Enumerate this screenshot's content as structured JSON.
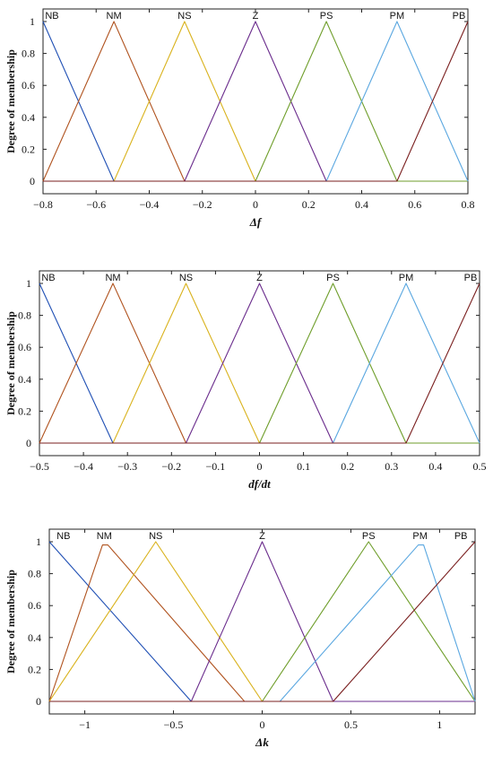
{
  "colors": {
    "NB": "#1f4fb4",
    "NM": "#b0531f",
    "NS": "#d9b21c",
    "Z": "#6a2c8c",
    "PS": "#6f9e2b",
    "PM": "#5aa7e0",
    "PB": "#7a1f1f"
  },
  "chart_data": [
    {
      "type": "line",
      "xlabel": "Δf",
      "ylabel": "Degree of membership",
      "xlim": [
        -0.8,
        0.8
      ],
      "ylim": [
        0,
        1
      ],
      "xticks": [
        -0.8,
        -0.6,
        -0.4,
        -0.2,
        0,
        0.2,
        0.4,
        0.6,
        0.8
      ],
      "xtick_labels": [
        "−0.8",
        "−0.6",
        "−0.4",
        "−0.2",
        "0",
        "0.2",
        "0.4",
        "0.6",
        "0.8"
      ],
      "yticks": [
        0,
        0.2,
        0.4,
        0.6,
        0.8,
        1
      ],
      "ytick_labels": [
        "0",
        "0.2",
        "0.4",
        "0.6",
        "0.8",
        "1"
      ],
      "series": [
        {
          "name": "NB",
          "points": [
            [
              -0.8,
              1
            ],
            [
              -0.533,
              0
            ],
            [
              0.8,
              0
            ]
          ]
        },
        {
          "name": "NM",
          "points": [
            [
              -0.8,
              0
            ],
            [
              -0.533,
              1
            ],
            [
              -0.267,
              0
            ],
            [
              0.8,
              0
            ]
          ]
        },
        {
          "name": "NS",
          "points": [
            [
              -0.8,
              0
            ],
            [
              -0.533,
              0
            ],
            [
              -0.267,
              1
            ],
            [
              0,
              0
            ],
            [
              0.8,
              0
            ]
          ]
        },
        {
          "name": "Z",
          "points": [
            [
              -0.8,
              0
            ],
            [
              -0.267,
              0
            ],
            [
              0,
              1
            ],
            [
              0.267,
              0
            ],
            [
              0.8,
              0
            ]
          ]
        },
        {
          "name": "PS",
          "points": [
            [
              -0.8,
              0
            ],
            [
              0,
              0
            ],
            [
              0.267,
              1
            ],
            [
              0.533,
              0
            ],
            [
              0.8,
              0
            ]
          ]
        },
        {
          "name": "PM",
          "points": [
            [
              -0.8,
              0
            ],
            [
              0.267,
              0
            ],
            [
              0.533,
              1
            ],
            [
              0.8,
              0
            ]
          ]
        },
        {
          "name": "PB",
          "points": [
            [
              -0.8,
              0
            ],
            [
              0.533,
              0
            ],
            [
              0.8,
              1
            ]
          ]
        }
      ],
      "mf_labels": [
        {
          "name": "NB",
          "x": -0.8
        },
        {
          "name": "NM",
          "x": -0.533
        },
        {
          "name": "NS",
          "x": -0.267
        },
        {
          "name": "Z",
          "x": 0
        },
        {
          "name": "PS",
          "x": 0.267
        },
        {
          "name": "PM",
          "x": 0.533
        },
        {
          "name": "PB",
          "x": 0.8
        }
      ]
    },
    {
      "type": "line",
      "xlabel": "df/dt",
      "ylabel": "Degree of membership",
      "xlim": [
        -0.5,
        0.5
      ],
      "ylim": [
        0,
        1
      ],
      "xticks": [
        -0.5,
        -0.4,
        -0.3,
        -0.2,
        -0.1,
        0,
        0.1,
        0.2,
        0.3,
        0.4,
        0.5
      ],
      "xtick_labels": [
        "−0.5",
        "−0.4",
        "−0.3",
        "−0.2",
        "−0.1",
        "0",
        "0.1",
        "0.2",
        "0.3",
        "0.4",
        "0.5"
      ],
      "yticks": [
        0,
        0.2,
        0.4,
        0.6,
        0.8,
        1
      ],
      "ytick_labels": [
        "0",
        "0.2",
        "0.4",
        "0.6",
        "0.8",
        "1"
      ],
      "series": [
        {
          "name": "NB",
          "points": [
            [
              -0.5,
              1
            ],
            [
              -0.333,
              0
            ],
            [
              0.5,
              0
            ]
          ]
        },
        {
          "name": "NM",
          "points": [
            [
              -0.5,
              0
            ],
            [
              -0.333,
              1
            ],
            [
              -0.167,
              0
            ],
            [
              0.5,
              0
            ]
          ]
        },
        {
          "name": "NS",
          "points": [
            [
              -0.5,
              0
            ],
            [
              -0.333,
              0
            ],
            [
              -0.167,
              1
            ],
            [
              0,
              0
            ],
            [
              0.5,
              0
            ]
          ]
        },
        {
          "name": "Z",
          "points": [
            [
              -0.5,
              0
            ],
            [
              -0.167,
              0
            ],
            [
              0,
              1
            ],
            [
              0.167,
              0
            ],
            [
              0.5,
              0
            ]
          ]
        },
        {
          "name": "PS",
          "points": [
            [
              -0.5,
              0
            ],
            [
              0,
              0
            ],
            [
              0.167,
              1
            ],
            [
              0.333,
              0
            ],
            [
              0.5,
              0
            ]
          ]
        },
        {
          "name": "PM",
          "points": [
            [
              -0.5,
              0
            ],
            [
              0.167,
              0
            ],
            [
              0.333,
              1
            ],
            [
              0.5,
              0
            ]
          ]
        },
        {
          "name": "PB",
          "points": [
            [
              -0.5,
              0
            ],
            [
              0.333,
              0
            ],
            [
              0.5,
              1
            ]
          ]
        }
      ],
      "mf_labels": [
        {
          "name": "NB",
          "x": -0.5
        },
        {
          "name": "NM",
          "x": -0.333
        },
        {
          "name": "NS",
          "x": -0.167
        },
        {
          "name": "Z",
          "x": 0
        },
        {
          "name": "PS",
          "x": 0.167
        },
        {
          "name": "PM",
          "x": 0.333
        },
        {
          "name": "PB",
          "x": 0.5
        }
      ]
    },
    {
      "type": "line",
      "xlabel": "Δk",
      "ylabel": "Degree of membership",
      "xlim": [
        -1.2,
        1.2
      ],
      "ylim": [
        0,
        1
      ],
      "xticks": [
        -1,
        -0.5,
        0,
        0.5,
        1
      ],
      "xtick_labels": [
        "−1",
        "−0.5",
        "0",
        "0.5",
        "1"
      ],
      "yticks": [
        0,
        0.2,
        0.4,
        0.6,
        0.8,
        1
      ],
      "ytick_labels": [
        "0",
        "0.2",
        "0.4",
        "0.6",
        "0.8",
        "1"
      ],
      "series": [
        {
          "name": "NB",
          "points": [
            [
              -1.2,
              1
            ],
            [
              -0.4,
              0
            ],
            [
              1.2,
              0
            ]
          ]
        },
        {
          "name": "NM",
          "points": [
            [
              -1.2,
              0
            ],
            [
              -0.9,
              0.98
            ],
            [
              -0.87,
              0.98
            ],
            [
              -0.1,
              0
            ],
            [
              1.2,
              0
            ]
          ]
        },
        {
          "name": "NS",
          "points": [
            [
              -1.2,
              0
            ],
            [
              -0.6,
              1
            ],
            [
              0,
              0
            ],
            [
              1.2,
              0
            ]
          ]
        },
        {
          "name": "Z",
          "points": [
            [
              -1.2,
              0
            ],
            [
              -0.4,
              0
            ],
            [
              0,
              1
            ],
            [
              0.4,
              0
            ],
            [
              1.2,
              0
            ]
          ]
        },
        {
          "name": "PS",
          "points": [
            [
              -1.2,
              0
            ],
            [
              0,
              0
            ],
            [
              0.6,
              1
            ],
            [
              1.2,
              0
            ]
          ]
        },
        {
          "name": "PM",
          "points": [
            [
              -1.2,
              0
            ],
            [
              0.1,
              0
            ],
            [
              0.88,
              0.98
            ],
            [
              0.91,
              0.98
            ],
            [
              1.2,
              0
            ]
          ]
        },
        {
          "name": "PB",
          "points": [
            [
              -1.2,
              0
            ],
            [
              0.4,
              0
            ],
            [
              1.2,
              1
            ]
          ]
        }
      ],
      "mf_labels": [
        {
          "name": "NB",
          "x": -1.12
        },
        {
          "name": "NM",
          "x": -0.89
        },
        {
          "name": "NS",
          "x": -0.6
        },
        {
          "name": "Z",
          "x": 0
        },
        {
          "name": "PS",
          "x": 0.6
        },
        {
          "name": "PM",
          "x": 0.89
        },
        {
          "name": "PB",
          "x": 1.12
        }
      ]
    }
  ]
}
